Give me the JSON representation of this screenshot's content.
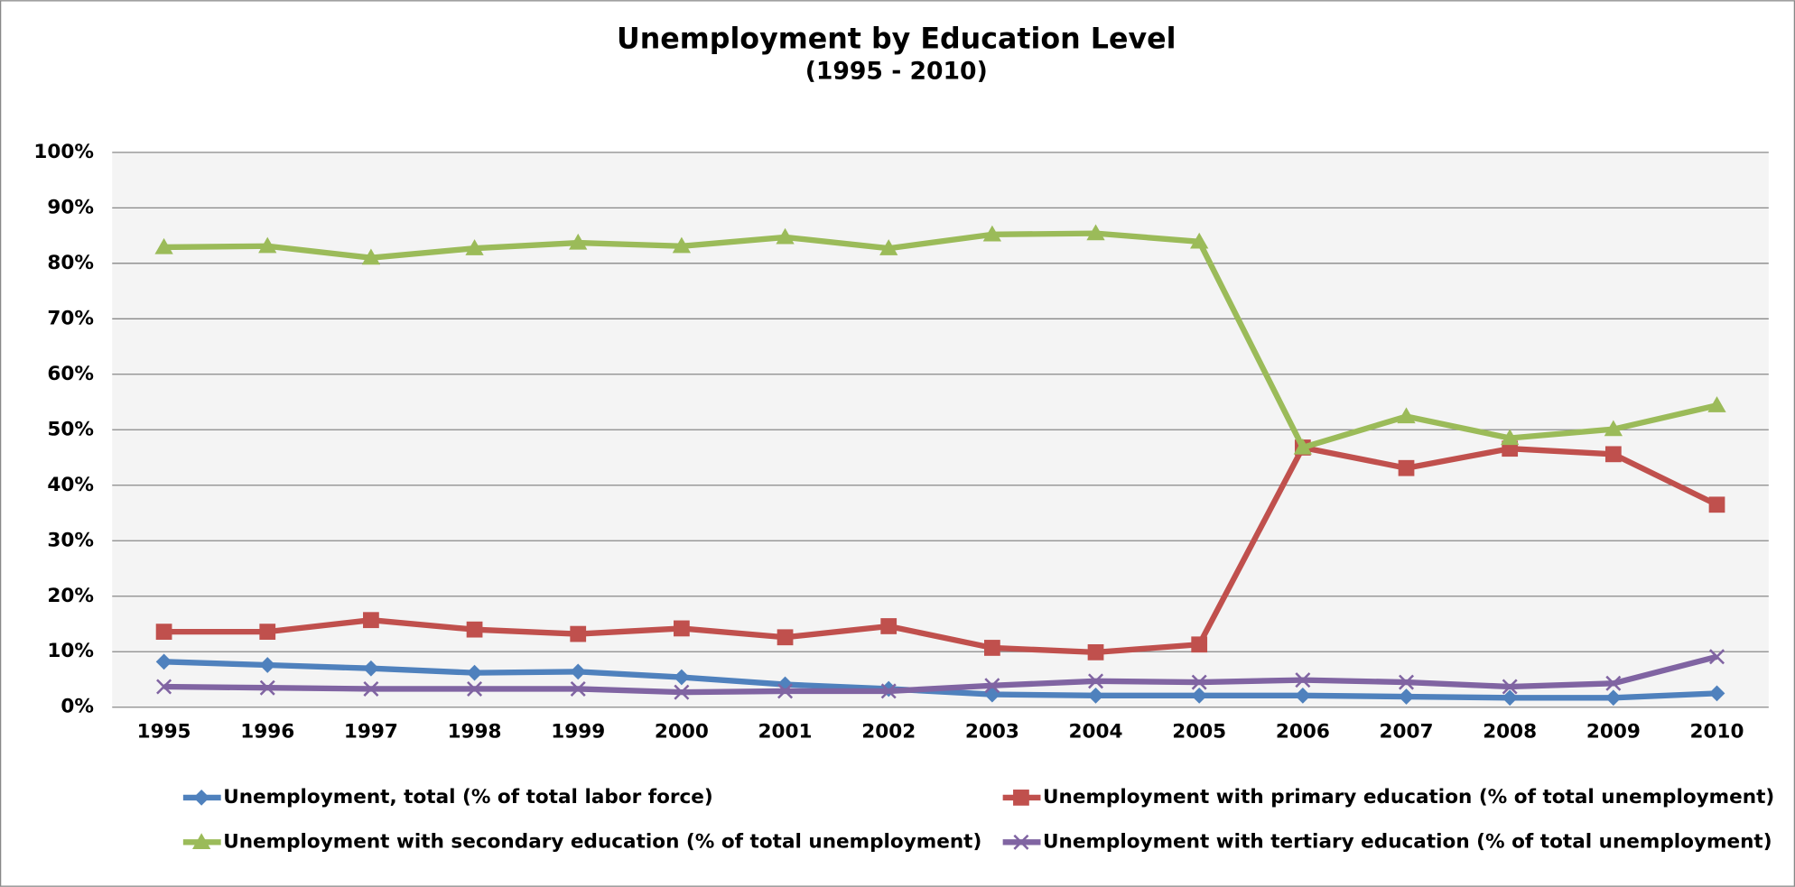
{
  "chart_data": {
    "type": "line",
    "title": "Unemployment by Education Level",
    "subtitle": "(1995 - 2010)",
    "categories": [
      "1995",
      "1996",
      "1997",
      "1998",
      "1999",
      "2000",
      "2001",
      "2002",
      "2003",
      "2004",
      "2005",
      "2006",
      "2007",
      "2008",
      "2009",
      "2010"
    ],
    "series": [
      {
        "name": "Unemployment, total (% of total labor force)",
        "color": "#4f81bd",
        "marker": "diamond",
        "values": [
          8.2,
          7.6,
          7.0,
          6.2,
          6.4,
          5.4,
          4.1,
          3.3,
          2.3,
          2.1,
          2.1,
          2.1,
          1.9,
          1.7,
          1.7,
          2.5
        ]
      },
      {
        "name": "Unemployment with primary education (% of total unemployment)",
        "color": "#c0504d",
        "marker": "square",
        "values": [
          13.6,
          13.6,
          15.7,
          14.0,
          13.2,
          14.2,
          12.6,
          14.6,
          10.7,
          9.9,
          11.3,
          46.8,
          43.1,
          46.6,
          45.6,
          36.5
        ]
      },
      {
        "name": "Unemployment with secondary education (% of total unemployment)",
        "color": "#9bbb59",
        "marker": "triangle",
        "values": [
          82.9,
          83.1,
          81.0,
          82.7,
          83.7,
          83.1,
          84.7,
          82.7,
          85.2,
          85.4,
          83.9,
          46.8,
          52.4,
          48.5,
          50.1,
          54.4
        ]
      },
      {
        "name": "Unemployment with tertiary education (% of total unemployment)",
        "color": "#8064a2",
        "marker": "x",
        "values": [
          3.7,
          3.5,
          3.3,
          3.3,
          3.3,
          2.7,
          2.9,
          2.9,
          3.9,
          4.7,
          4.5,
          4.9,
          4.5,
          3.7,
          4.3,
          9.1
        ]
      }
    ],
    "ylim": [
      0,
      100
    ],
    "yticks": [
      {
        "value": 0,
        "label": "0%"
      },
      {
        "value": 10,
        "label": "10%"
      },
      {
        "value": 20,
        "label": "20%"
      },
      {
        "value": 30,
        "label": "30%"
      },
      {
        "value": 40,
        "label": "40%"
      },
      {
        "value": 50,
        "label": "50%"
      },
      {
        "value": 60,
        "label": "60%"
      },
      {
        "value": 70,
        "label": "70%"
      },
      {
        "value": 80,
        "label": "80%"
      },
      {
        "value": 90,
        "label": "90%"
      },
      {
        "value": 100,
        "label": "100%"
      }
    ],
    "grid": true,
    "legend_position": "bottom"
  }
}
